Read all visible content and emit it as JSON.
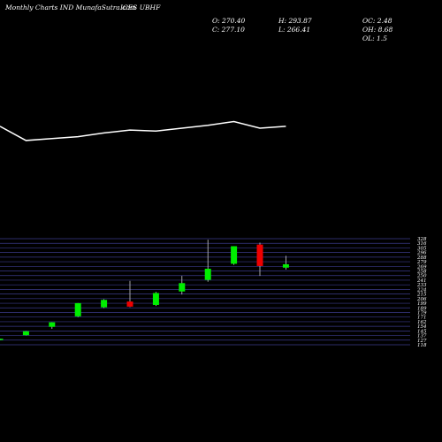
{
  "header": {
    "title": "Monthly Charts IND MunafaSutra.com",
    "symbol": "ICES UBHF",
    "open_close": {
      "o": "O: 270.40",
      "c": "C: 277.10"
    },
    "high_low": {
      "h": "H: 293.87",
      "l": "L: 266.41"
    },
    "stats": {
      "oc": "OC: 2.48",
      "oh": "OH: 8.68",
      "ol": "OL: 1.5"
    }
  },
  "colors": {
    "background": "#000000",
    "bullish": "#00ee00",
    "bearish": "#ee0000",
    "grid": "#3a3a8a",
    "line": "#ffffff"
  },
  "chart_data": [
    {
      "type": "line",
      "x": [
        1,
        2,
        3,
        4,
        5,
        6,
        7,
        8,
        9,
        10,
        11,
        12
      ],
      "values": [
        103,
        104.5,
        104.3,
        104.1,
        103.7,
        103.4,
        103.5,
        103.2,
        102.9,
        102.5,
        103.2,
        103
      ]
    },
    {
      "type": "candlestick",
      "x": [
        1,
        2,
        3,
        4,
        5,
        6,
        7,
        8,
        9,
        10,
        11,
        12
      ],
      "candles": [
        {
          "o": 127.5,
          "h": 129.0,
          "l": 126.2,
          "c": 129.0
        },
        {
          "o": 136.0,
          "h": 144.3,
          "l": 135.6,
          "c": 143.8
        },
        {
          "o": 152.6,
          "h": 162.0,
          "l": 148.6,
          "c": 161.7
        },
        {
          "o": 173.5,
          "h": 200.0,
          "l": 172.2,
          "c": 199.8
        },
        {
          "o": 191.5,
          "h": 207.8,
          "l": 190.0,
          "c": 206.2
        },
        {
          "o": 203.0,
          "h": 244.0,
          "l": 192.0,
          "c": 192.8
        },
        {
          "o": 196.2,
          "h": 222.0,
          "l": 194.2,
          "c": 219.9
        },
        {
          "o": 223.0,
          "h": 254.0,
          "l": 217.0,
          "c": 239.6
        },
        {
          "o": 246.0,
          "h": 326.0,
          "l": 242.3,
          "c": 268.2
        },
        {
          "o": 278.1,
          "h": 313.0,
          "l": 275.9,
          "c": 313.0
        },
        {
          "o": 316.3,
          "h": 320.0,
          "l": 254.0,
          "c": 273.6
        },
        {
          "o": 270.4,
          "h": 293.87,
          "l": 266.41,
          "c": 277.1
        }
      ],
      "ylim": [
        117,
        328
      ],
      "yticks": [
        "328",
        "316",
        "305",
        "296",
        "288",
        "279",
        "269",
        "258",
        "250",
        "241",
        "233",
        "224",
        "215",
        "206",
        "199",
        "189",
        "179",
        "171",
        "162",
        "154",
        "145",
        "137",
        "127",
        "118"
      ]
    }
  ]
}
